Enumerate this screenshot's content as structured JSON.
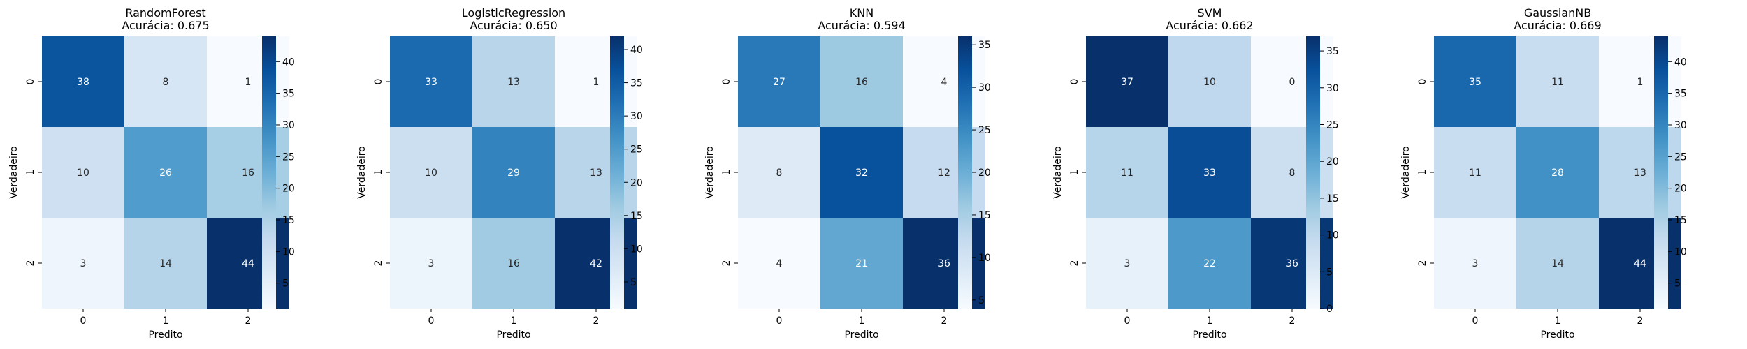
{
  "colorscale": [
    "#f7fbff",
    "#deebf7",
    "#c6dbef",
    "#9ecae1",
    "#6baed6",
    "#4292c6",
    "#2171b5",
    "#08519c",
    "#08306b"
  ],
  "chart_data": [
    {
      "type": "heatmap",
      "title": "RandomForest",
      "subtitle": "Acurácia: 0.675",
      "xlabel": "Predito",
      "ylabel": "Verdadeiro",
      "x_categories": [
        "0",
        "1",
        "2"
      ],
      "y_categories": [
        "0",
        "1",
        "2"
      ],
      "matrix": [
        [
          38,
          8,
          1
        ],
        [
          10,
          26,
          16
        ],
        [
          3,
          14,
          44
        ]
      ],
      "colorbar_range": [
        1,
        44
      ],
      "colorbar_ticks": [
        5,
        10,
        15,
        20,
        25,
        30,
        35,
        40
      ]
    },
    {
      "type": "heatmap",
      "title": "LogisticRegression",
      "subtitle": "Acurácia: 0.650",
      "xlabel": "Predito",
      "ylabel": "Verdadeiro",
      "x_categories": [
        "0",
        "1",
        "2"
      ],
      "y_categories": [
        "0",
        "1",
        "2"
      ],
      "matrix": [
        [
          33,
          13,
          1
        ],
        [
          10,
          29,
          13
        ],
        [
          3,
          16,
          42
        ]
      ],
      "colorbar_range": [
        1,
        42
      ],
      "colorbar_ticks": [
        5,
        10,
        15,
        20,
        25,
        30,
        35,
        40
      ]
    },
    {
      "type": "heatmap",
      "title": "KNN",
      "subtitle": "Acurácia: 0.594",
      "xlabel": "Predito",
      "ylabel": "Verdadeiro",
      "x_categories": [
        "0",
        "1",
        "2"
      ],
      "y_categories": [
        "0",
        "1",
        "2"
      ],
      "matrix": [
        [
          27,
          16,
          4
        ],
        [
          8,
          32,
          12
        ],
        [
          4,
          21,
          36
        ]
      ],
      "colorbar_range": [
        4,
        36
      ],
      "colorbar_ticks": [
        5,
        10,
        15,
        20,
        25,
        30,
        35
      ]
    },
    {
      "type": "heatmap",
      "title": "SVM",
      "subtitle": "Acurácia: 0.662",
      "xlabel": "Predito",
      "ylabel": "Verdadeiro",
      "x_categories": [
        "0",
        "1",
        "2"
      ],
      "y_categories": [
        "0",
        "1",
        "2"
      ],
      "matrix": [
        [
          37,
          10,
          0
        ],
        [
          11,
          33,
          8
        ],
        [
          3,
          22,
          36
        ]
      ],
      "colorbar_range": [
        0,
        37
      ],
      "colorbar_ticks": [
        0,
        5,
        10,
        15,
        20,
        25,
        30,
        35
      ]
    },
    {
      "type": "heatmap",
      "title": "GaussianNB",
      "subtitle": "Acurácia: 0.669",
      "xlabel": "Predito",
      "ylabel": "Verdadeiro",
      "x_categories": [
        "0",
        "1",
        "2"
      ],
      "y_categories": [
        "0",
        "1",
        "2"
      ],
      "matrix": [
        [
          35,
          11,
          1
        ],
        [
          11,
          28,
          13
        ],
        [
          3,
          14,
          44
        ]
      ],
      "colorbar_range": [
        1,
        44
      ],
      "colorbar_ticks": [
        5,
        10,
        15,
        20,
        25,
        30,
        35,
        40
      ]
    }
  ]
}
